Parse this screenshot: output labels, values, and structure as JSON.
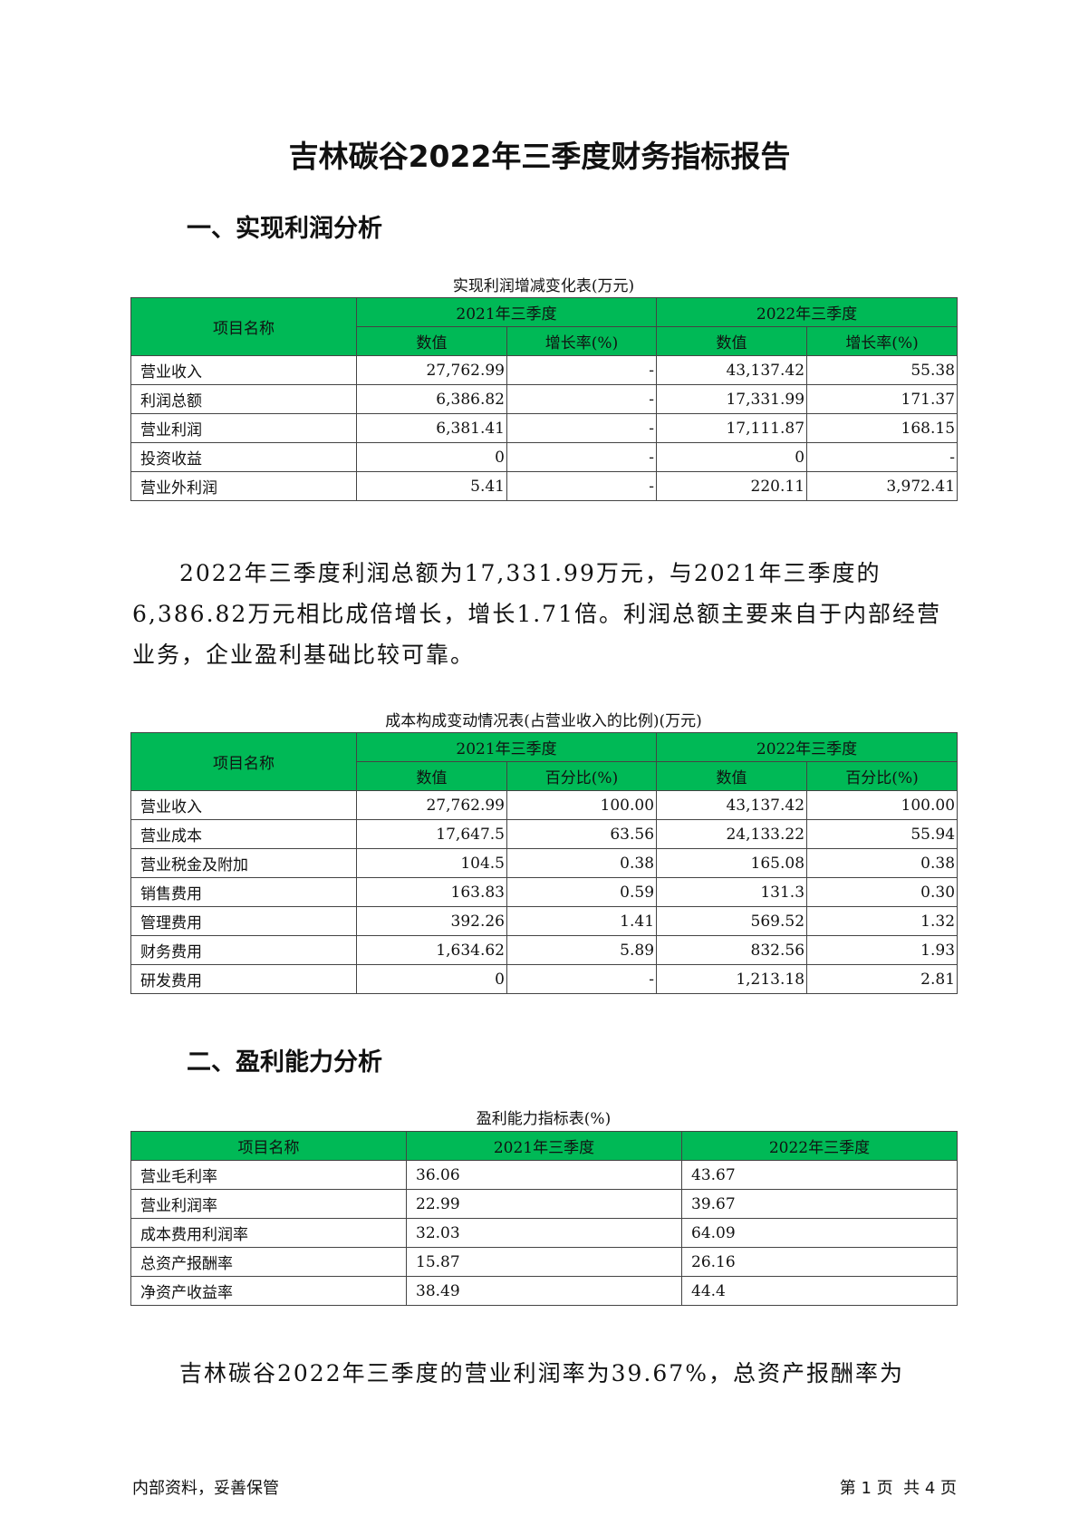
{
  "title": "吉林碳谷2022年三季度财务指标报告",
  "section1": "一、实现利润分析",
  "section2": "二、盈利能力分析",
  "table1": {
    "caption": "实现利润增减变化表(万元)",
    "col_name": "项目名称",
    "period1": "2021年三季度",
    "period2": "2022年三季度",
    "sub_value": "数值",
    "sub_rate": "增长率(%)",
    "rows": [
      [
        "营业收入",
        "27,762.99",
        "-",
        "43,137.42",
        "55.38"
      ],
      [
        "利润总额",
        "6,386.82",
        "-",
        "17,331.99",
        "171.37"
      ],
      [
        "营业利润",
        "6,381.41",
        "-",
        "17,111.87",
        "168.15"
      ],
      [
        "投资收益",
        "0",
        "-",
        "0",
        "-"
      ],
      [
        "营业外利润",
        "5.41",
        "-",
        "220.11",
        "3,972.41"
      ]
    ]
  },
  "paragraph1": "2022年三季度利润总额为17,331.99万元，与2021年三季度的6,386.82万元相比成倍增长，增长1.71倍。利润总额主要来自于内部经营业务，企业盈利基础比较可靠。",
  "table2": {
    "caption": "成本构成变动情况表(占营业收入的比例)(万元)",
    "col_name": "项目名称",
    "period1": "2021年三季度",
    "period2": "2022年三季度",
    "sub_value": "数值",
    "sub_pct": "百分比(%)",
    "rows": [
      [
        "营业收入",
        "27,762.99",
        "100.00",
        "43,137.42",
        "100.00"
      ],
      [
        "营业成本",
        "17,647.5",
        "63.56",
        "24,133.22",
        "55.94"
      ],
      [
        "营业税金及附加",
        "104.5",
        "0.38",
        "165.08",
        "0.38"
      ],
      [
        "销售费用",
        "163.83",
        "0.59",
        "131.3",
        "0.30"
      ],
      [
        "管理费用",
        "392.26",
        "1.41",
        "569.52",
        "1.32"
      ],
      [
        "财务费用",
        "1,634.62",
        "5.89",
        "832.56",
        "1.93"
      ],
      [
        "研发费用",
        "0",
        "-",
        "1,213.18",
        "2.81"
      ]
    ]
  },
  "table3": {
    "caption": "盈利能力指标表(%)",
    "col_name": "项目名称",
    "period1": "2021年三季度",
    "period2": "2022年三季度",
    "rows": [
      [
        "营业毛利率",
        "36.06",
        "43.67"
      ],
      [
        "营业利润率",
        "22.99",
        "39.67"
      ],
      [
        "成本费用利润率",
        "32.03",
        "64.09"
      ],
      [
        "总资产报酬率",
        "15.87",
        "26.16"
      ],
      [
        "净资产收益率",
        "38.49",
        "44.4"
      ]
    ]
  },
  "paragraph2": "吉林碳谷2022年三季度的营业利润率为39.67%，总资产报酬率为",
  "footer": {
    "left": "内部资料，妥善保管",
    "right": "第 1 页  共 4 页"
  },
  "colors": {
    "header_bg": "#00b956"
  }
}
